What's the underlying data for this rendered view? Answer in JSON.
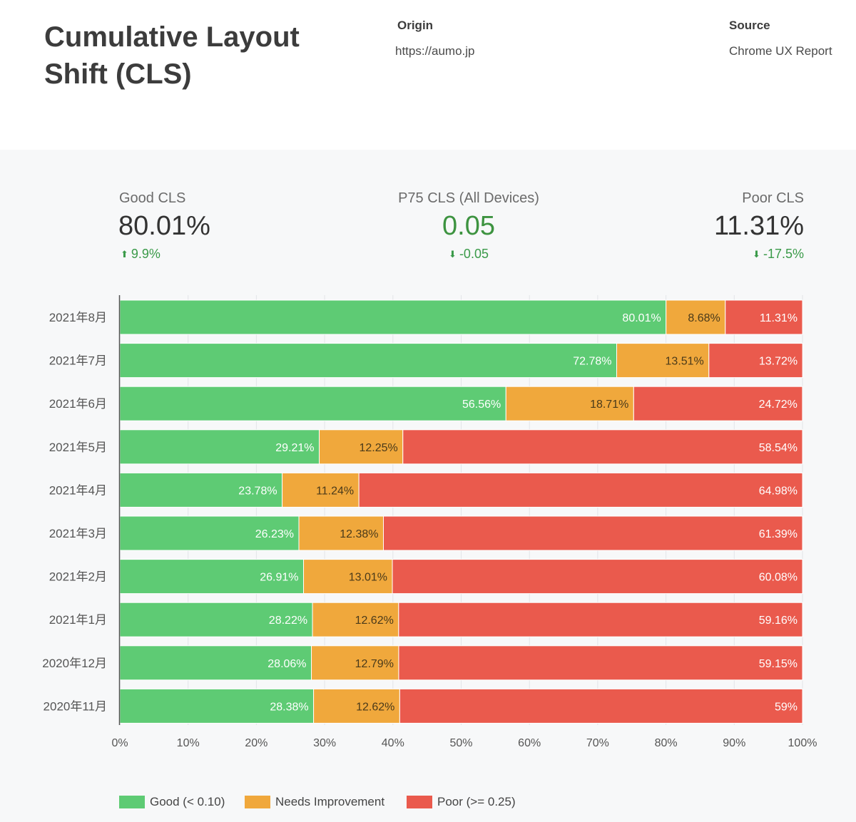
{
  "header": {
    "title": "Cumulative Layout Shift (CLS)",
    "origin_label": "Origin",
    "origin_value": "https://aumo.jp",
    "source_label": "Source",
    "source_value": "Chrome UX Report"
  },
  "kpis": {
    "good": {
      "label": "Good CLS",
      "value": "80.01%",
      "delta": "9.9%",
      "direction": "up"
    },
    "p75": {
      "label": "P75 CLS (All Devices)",
      "value": "0.05",
      "delta": "-0.05",
      "direction": "down"
    },
    "poor": {
      "label": "Poor CLS",
      "value": "11.31%",
      "delta": "-17.5%",
      "direction": "down"
    }
  },
  "colors": {
    "good": "#5ecb74",
    "needs": "#f0a83c",
    "poor": "#ea5a4d",
    "positive": "#3a9a49",
    "p75_value": "#3d9340"
  },
  "chart_data": {
    "type": "bar",
    "orientation": "horizontal",
    "stacked": true,
    "categories": [
      "2021年8月",
      "2021年7月",
      "2021年6月",
      "2021年5月",
      "2021年4月",
      "2021年3月",
      "2021年2月",
      "2021年1月",
      "2020年12月",
      "2020年11月"
    ],
    "series": [
      {
        "name": "Good (< 0.10)",
        "key": "good",
        "values": [
          80.01,
          72.78,
          56.56,
          29.21,
          23.78,
          26.23,
          26.91,
          28.22,
          28.06,
          28.38
        ],
        "labels": [
          "80.01%",
          "72.78%",
          "56.56%",
          "29.21%",
          "23.78%",
          "26.23%",
          "26.91%",
          "28.22%",
          "28.06%",
          "28.38%"
        ]
      },
      {
        "name": "Needs Improvement",
        "key": "needs",
        "values": [
          8.68,
          13.51,
          18.71,
          12.25,
          11.24,
          12.38,
          13.01,
          12.62,
          12.79,
          12.62
        ],
        "labels": [
          "8.68%",
          "13.51%",
          "18.71%",
          "12.25%",
          "11.24%",
          "12.38%",
          "13.01%",
          "12.62%",
          "12.79%",
          "12.62%"
        ]
      },
      {
        "name": "Poor (>= 0.25)",
        "key": "poor",
        "values": [
          11.31,
          13.72,
          24.72,
          58.54,
          64.98,
          61.39,
          60.08,
          59.16,
          59.15,
          59
        ],
        "labels": [
          "11.31%",
          "13.72%",
          "24.72%",
          "58.54%",
          "64.98%",
          "61.39%",
          "60.08%",
          "59.16%",
          "59.15%",
          "59%"
        ]
      }
    ],
    "x_ticks": [
      "0%",
      "10%",
      "20%",
      "30%",
      "40%",
      "50%",
      "60%",
      "70%",
      "80%",
      "90%",
      "100%"
    ],
    "xlim": [
      0,
      100
    ],
    "grid": true,
    "legend_position": "bottom-left"
  }
}
